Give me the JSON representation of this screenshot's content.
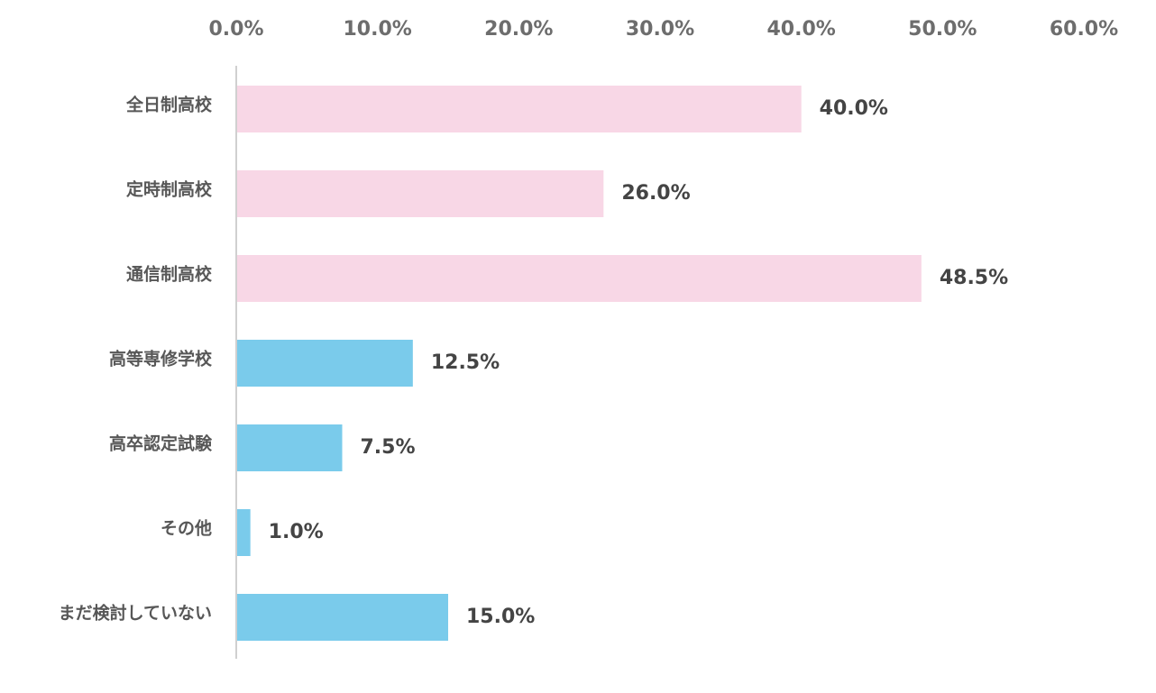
{
  "chart_data": {
    "type": "bar",
    "orientation": "horizontal",
    "title": "",
    "xlabel": "",
    "ylabel": "",
    "xlim": [
      0,
      60
    ],
    "x_ticks": [
      0,
      10,
      20,
      30,
      40,
      50,
      60
    ],
    "x_tick_labels": [
      "0.0%",
      "10.0%",
      "20.0%",
      "30.0%",
      "40.0%",
      "50.0%",
      "60.0%"
    ],
    "x_axis_position": "top",
    "grid": false,
    "categories": [
      "全日制高校",
      "定時制高校",
      "通信制高校",
      "高等専修学校",
      "高卒認定試験",
      "その他",
      "まだ検討していない"
    ],
    "values": [
      40.0,
      26.0,
      48.5,
      12.5,
      7.5,
      1.0,
      15.0
    ],
    "value_labels": [
      "40.0%",
      "26.0%",
      "48.5%",
      "12.5%",
      "7.5%",
      "1.0%",
      "15.0%"
    ],
    "bar_colors": [
      "#f8d7e6",
      "#f8d7e6",
      "#f8d7e6",
      "#7acbeb",
      "#7acbeb",
      "#7acbeb",
      "#7acbeb"
    ],
    "axis_color": "#d0d0d0"
  }
}
